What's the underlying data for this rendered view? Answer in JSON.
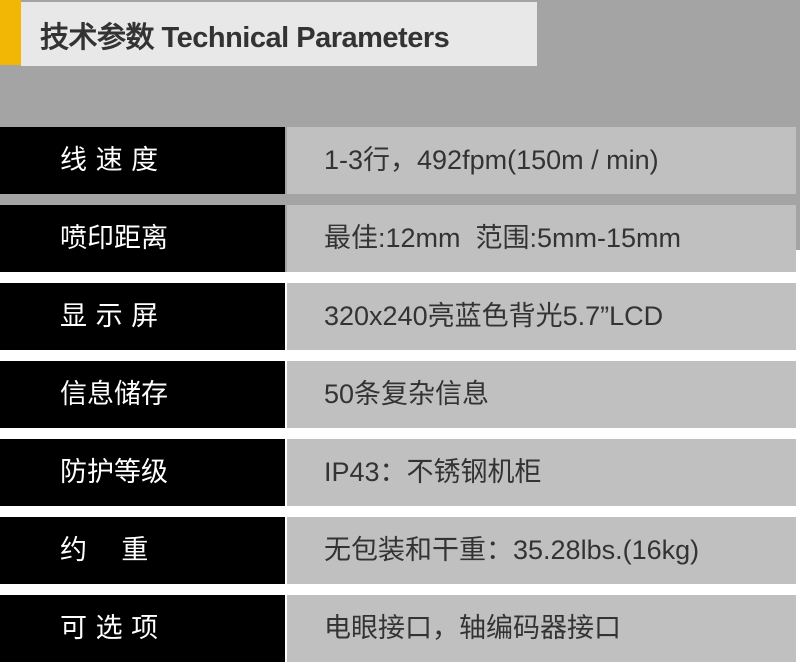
{
  "title": "技术参数 Technical Parameters",
  "colors": {
    "accent": "#f2b705",
    "label_bg": "#000000",
    "value_bg": "#c0c0c0"
  },
  "rows": [
    {
      "label": "线 速 度",
      "value": "1-3行，492fpm(150m / min)"
    },
    {
      "label": "喷印距离",
      "value": "最佳:12mm  范围:5mm-15mm"
    },
    {
      "label": "显 示 屏",
      "value": "320x240亮蓝色背光5.7”LCD"
    },
    {
      "label": "信息储存",
      "value": "50条复杂信息"
    },
    {
      "label": "防护等级",
      "value": "IP43：不锈钢机柜"
    },
    {
      "label": "约    重",
      "value": "无包装和干重：35.28lbs.(16kg)"
    },
    {
      "label": "可 选 项",
      "value": "电眼接口，轴编码器接口"
    }
  ]
}
